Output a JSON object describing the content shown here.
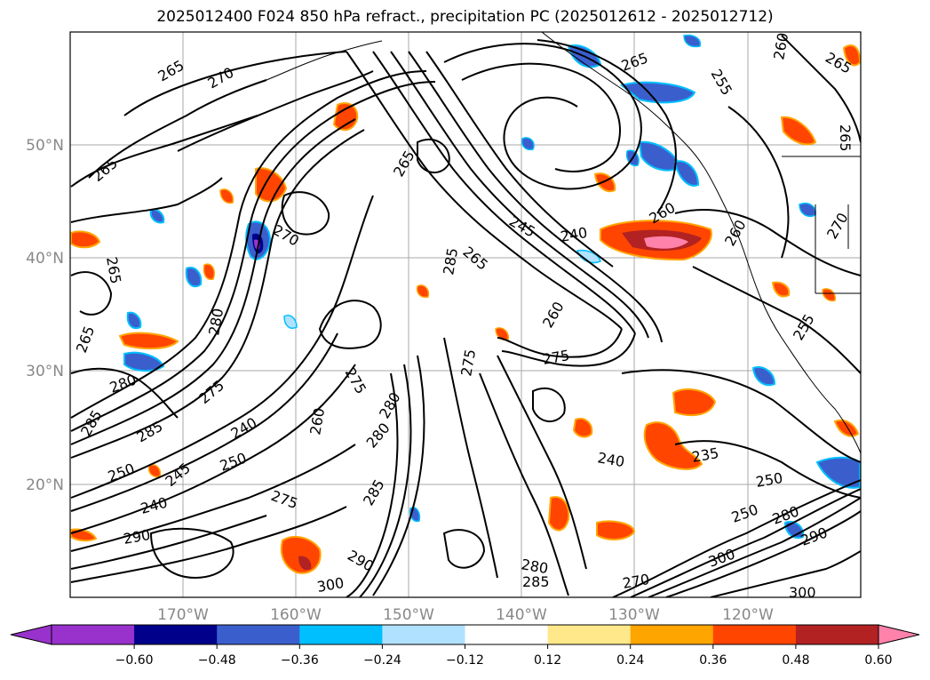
{
  "title": "2025012400 F024 850 hPa refract., precipitation PC (2025012612 - 2025012712)",
  "lat_labels": [
    "50°N",
    "40°N",
    "30°N",
    "20°N"
  ],
  "lon_labels": [
    "170°W",
    "160°W",
    "150°W",
    "140°W",
    "130°W",
    "120°W"
  ],
  "colorbar": {
    "ticks": [
      "−0.60",
      "−0.48",
      "−0.36",
      "−0.24",
      "−0.12",
      "0.12",
      "0.24",
      "0.36",
      "0.48",
      "0.60"
    ],
    "colors": [
      "#9932cc",
      "#00008b",
      "#3a5fcd",
      "#00bfff",
      "#b0e2ff",
      "#ffffff",
      "#ffe88a",
      "#ffa500",
      "#ff4500",
      "#b22222",
      "#ff82ab",
      "#ff82ab"
    ]
  },
  "contour_labels": [
    {
      "text": "265"
    },
    {
      "text": "270"
    },
    {
      "text": "265"
    },
    {
      "text": "265"
    },
    {
      "text": "265"
    },
    {
      "text": "270"
    },
    {
      "text": "280"
    },
    {
      "text": "275"
    },
    {
      "text": "285"
    },
    {
      "text": "265"
    },
    {
      "text": "245"
    },
    {
      "text": "240"
    },
    {
      "text": "260"
    },
    {
      "text": "260"
    },
    {
      "text": "260"
    },
    {
      "text": "265"
    },
    {
      "text": "255"
    },
    {
      "text": "260"
    },
    {
      "text": "265"
    },
    {
      "text": "265"
    },
    {
      "text": "275"
    },
    {
      "text": "275"
    },
    {
      "text": "280"
    },
    {
      "text": "285"
    },
    {
      "text": "240"
    },
    {
      "text": "235"
    },
    {
      "text": "250"
    },
    {
      "text": "250"
    },
    {
      "text": "280"
    },
    {
      "text": "290"
    },
    {
      "text": "300"
    },
    {
      "text": "300"
    },
    {
      "text": "270"
    },
    {
      "text": "285"
    },
    {
      "text": "280"
    },
    {
      "text": "290"
    },
    {
      "text": "300"
    },
    {
      "text": "290"
    },
    {
      "text": "240"
    },
    {
      "text": "250"
    },
    {
      "text": "245"
    },
    {
      "text": "285"
    },
    {
      "text": "240"
    },
    {
      "text": "275"
    },
    {
      "text": "285"
    },
    {
      "text": "280"
    },
    {
      "text": "250"
    },
    {
      "text": "265"
    },
    {
      "text": "270"
    },
    {
      "text": "280"
    },
    {
      "text": "275"
    },
    {
      "text": "260"
    },
    {
      "text": "255"
    }
  ]
}
